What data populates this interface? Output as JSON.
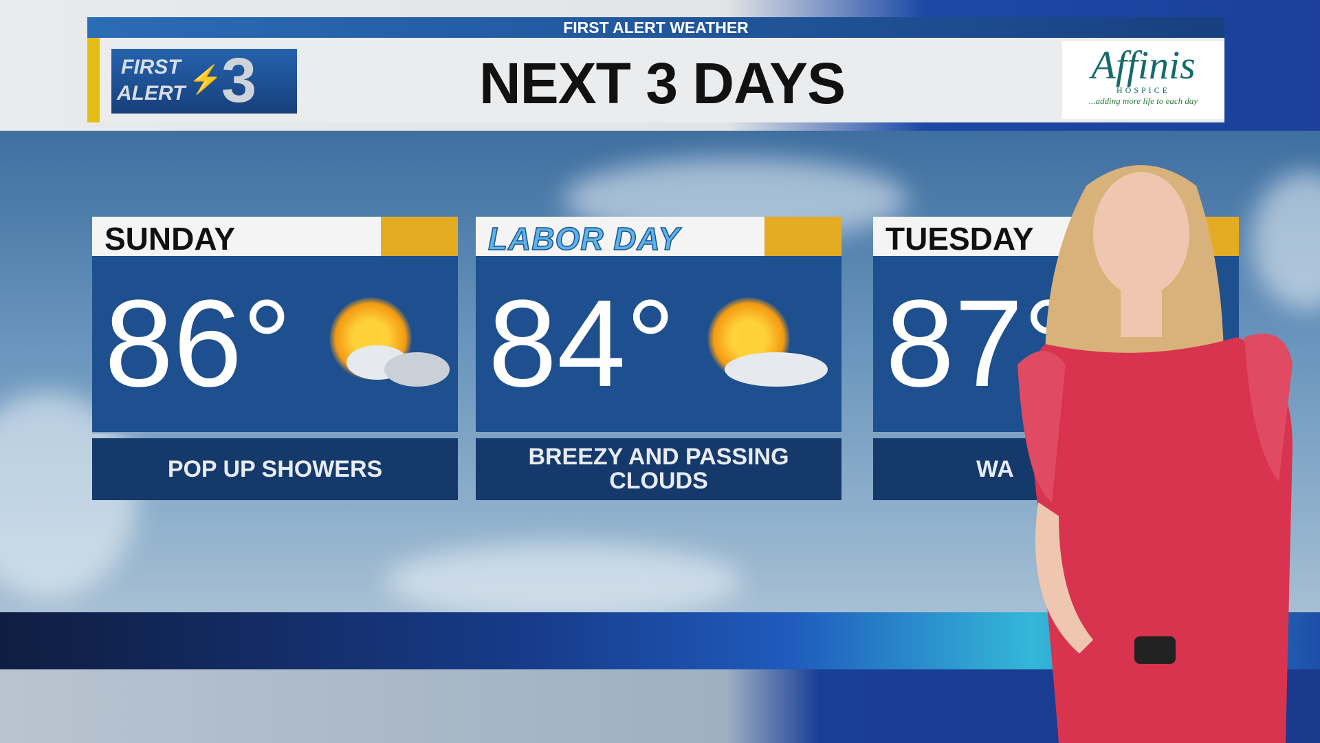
{
  "header": {
    "network_bar": "FIRST ALERT WEATHER",
    "title": "NEXT 3 DAYS",
    "station_logo": {
      "line1": "FIRST",
      "line2": "ALERT",
      "channel": "3"
    },
    "sponsor": {
      "name": "Affinis",
      "sub": "HOSPICE",
      "tagline": "...adding more life to each day"
    }
  },
  "forecast": [
    {
      "day": "SUNDAY",
      "temp": "86°",
      "icon": "sun-clouds-showers-icon",
      "description": "POP UP SHOWERS"
    },
    {
      "day": "LABOR DAY",
      "temp": "84°",
      "icon": "sun-clouds-icon",
      "description": "BREEZY AND PASSING CLOUDS"
    },
    {
      "day": "TUESDAY",
      "temp": "87°",
      "icon": "",
      "description": "WA"
    }
  ],
  "colors": {
    "card_blue": "#1e4f8e",
    "desc_blue": "#15396b",
    "accent_yellow": "#e4ac23",
    "dress_red": "#d8344f"
  }
}
